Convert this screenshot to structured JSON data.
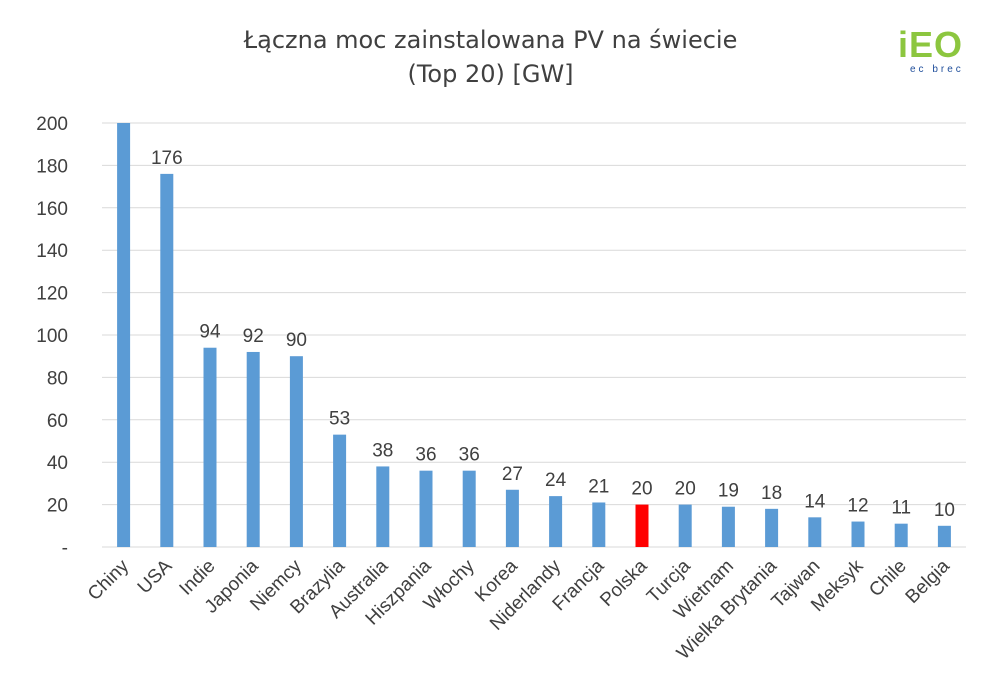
{
  "chart_data": {
    "type": "bar",
    "title": "Łączna moc zainstalowana PV na świecie",
    "subtitle": "(Top 20) [GW]",
    "categories": [
      "Chiny",
      "USA",
      "Indie",
      "Japonia",
      "Niemcy",
      "Brazylia",
      "Australia",
      "Hiszpania",
      "Włochy",
      "Korea",
      "Niderlandy",
      "Francja",
      "Polska",
      "Turcja",
      "Wietnam",
      "Wielka Brytania",
      "Tajwan",
      "Meksyk",
      "Chile",
      "Belgia"
    ],
    "values": [
      200,
      176,
      94,
      92,
      90,
      53,
      38,
      36,
      36,
      27,
      24,
      21,
      20,
      20,
      19,
      18,
      14,
      12,
      11,
      10
    ],
    "data_labels": [
      "",
      "176",
      "94",
      "92",
      "90",
      "53",
      "38",
      "36",
      "36",
      "27",
      "24",
      "21",
      "20",
      "20",
      "19",
      "18",
      "14",
      "12",
      "11",
      "10"
    ],
    "yticks": [
      "-",
      "20",
      "40",
      "60",
      "80",
      "100",
      "120",
      "140",
      "160",
      "180",
      "200"
    ],
    "ylim": [
      0,
      200
    ],
    "grid": true,
    "colors": {
      "bar": "#5b9bd5",
      "highlight": "#ff0000",
      "grid": "#d9d9d9",
      "text": "#404040"
    },
    "highlight_category": "Polska"
  },
  "logo": {
    "word": "iEO",
    "sub": "ec brec"
  }
}
